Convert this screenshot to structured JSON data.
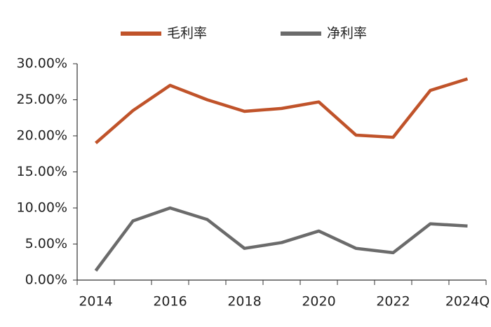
{
  "chart_data": {
    "type": "line",
    "categories": [
      "2014",
      null,
      "2016",
      null,
      "2018",
      null,
      "2020",
      null,
      "2022",
      null,
      "2024Q"
    ],
    "series": [
      {
        "name": "毛利率",
        "color": "#c0532a",
        "values": [
          19.0,
          23.5,
          27.0,
          25.0,
          23.4,
          23.8,
          24.7,
          20.1,
          19.8,
          26.3,
          27.9
        ]
      },
      {
        "name": "净利率",
        "color": "#6b6b6b",
        "values": [
          1.3,
          8.2,
          10.0,
          8.4,
          4.4,
          5.2,
          6.8,
          4.4,
          3.8,
          7.8,
          7.5
        ]
      }
    ],
    "ylim": [
      0,
      30
    ],
    "yticks": [
      {
        "value": 0,
        "label": "0.00%"
      },
      {
        "value": 5,
        "label": "5.00%"
      },
      {
        "value": 10,
        "label": "10.00%"
      },
      {
        "value": 15,
        "label": "15.00%"
      },
      {
        "value": 20,
        "label": "20.00%"
      },
      {
        "value": 25,
        "label": "25.00%"
      },
      {
        "value": 30,
        "label": "30.00%"
      }
    ],
    "grid": false,
    "legend": "top"
  }
}
